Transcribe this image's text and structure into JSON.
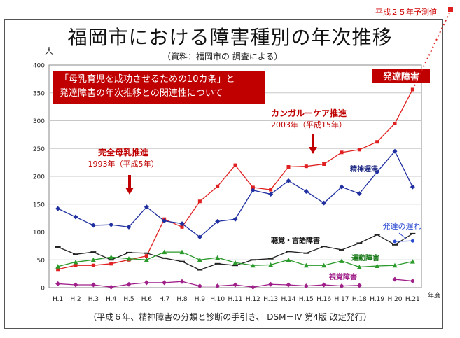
{
  "chart_data": {
    "type": "line",
    "title": "福岡市における障害種別の年次推移",
    "subtitle": "（資料：福岡市の 調査による）",
    "ylabel": "人",
    "xlabel_suffix": "年度",
    "ylim": [
      0,
      400
    ],
    "yticks": [
      0,
      50,
      100,
      150,
      200,
      250,
      300,
      350,
      400
    ],
    "categories": [
      "H.1",
      "H.2",
      "H.3",
      "H.4",
      "H.5",
      "H.6",
      "H.7",
      "H.8",
      "H.9",
      "H.10",
      "H.11",
      "H.12",
      "H.13",
      "H.14",
      "H.15",
      "H.16",
      "H.17",
      "H.18",
      "H.19",
      "H.20",
      "H.21"
    ],
    "series": [
      {
        "name": "発達障害",
        "color": "#e02020",
        "marker": "square",
        "values": [
          33,
          40,
          40,
          43,
          50,
          57,
          123,
          109,
          155,
          182,
          220,
          180,
          176,
          217,
          218,
          222,
          243,
          248,
          262,
          295,
          356
        ]
      },
      {
        "name": "精神遅滞",
        "color": "#2030a0",
        "marker": "diamond",
        "values": [
          142,
          127,
          112,
          113,
          109,
          145,
          120,
          115,
          91,
          119,
          123,
          175,
          168,
          192,
          173,
          152,
          181,
          169,
          208,
          245,
          181
        ]
      },
      {
        "name": "聴覚・言語障害",
        "color": "#222222",
        "marker": "dash",
        "values": [
          73,
          60,
          64,
          50,
          63,
          62,
          53,
          47,
          32,
          43,
          40,
          50,
          52,
          65,
          62,
          74,
          68,
          80,
          95,
          77,
          97
        ]
      },
      {
        "name": "運動障害",
        "color": "#2a9a2a",
        "marker": "triangle",
        "values": [
          38,
          46,
          50,
          55,
          52,
          50,
          64,
          64,
          50,
          54,
          45,
          40,
          41,
          50,
          40,
          40,
          48,
          37,
          39,
          40,
          47
        ]
      },
      {
        "name": "発達の遅れ",
        "color": "#2a4ad0",
        "marker": "circle",
        "values": [
          null,
          null,
          null,
          null,
          null,
          null,
          null,
          null,
          null,
          null,
          null,
          null,
          null,
          null,
          null,
          null,
          null,
          null,
          null,
          83,
          84
        ]
      },
      {
        "name": "視覚障害",
        "color": "#a0208a",
        "marker": "diamond",
        "values": [
          7,
          5,
          5,
          1,
          6,
          9,
          9,
          11,
          3,
          3,
          5,
          1,
          6,
          5,
          3,
          5,
          3,
          4,
          null,
          15,
          12
        ]
      }
    ],
    "annotations": [
      {
        "text": "完全母乳推進",
        "sub": "1993年（平成5年）",
        "x_category": "H.5"
      },
      {
        "text": "カンガルーケア推進",
        "sub": "2003年（平成15年）",
        "x_category": "H.15"
      }
    ],
    "forecast_label": "平成２５年予測値"
  },
  "callout": {
    "line1": "「母乳育児を成功させるための10カ条」と",
    "line2": "発達障害の年次推移との関連性について"
  },
  "footer": "（平成６年、精神障害の分類と診断の手引き、 DSM－Ⅳ 第4版 改定発行）"
}
